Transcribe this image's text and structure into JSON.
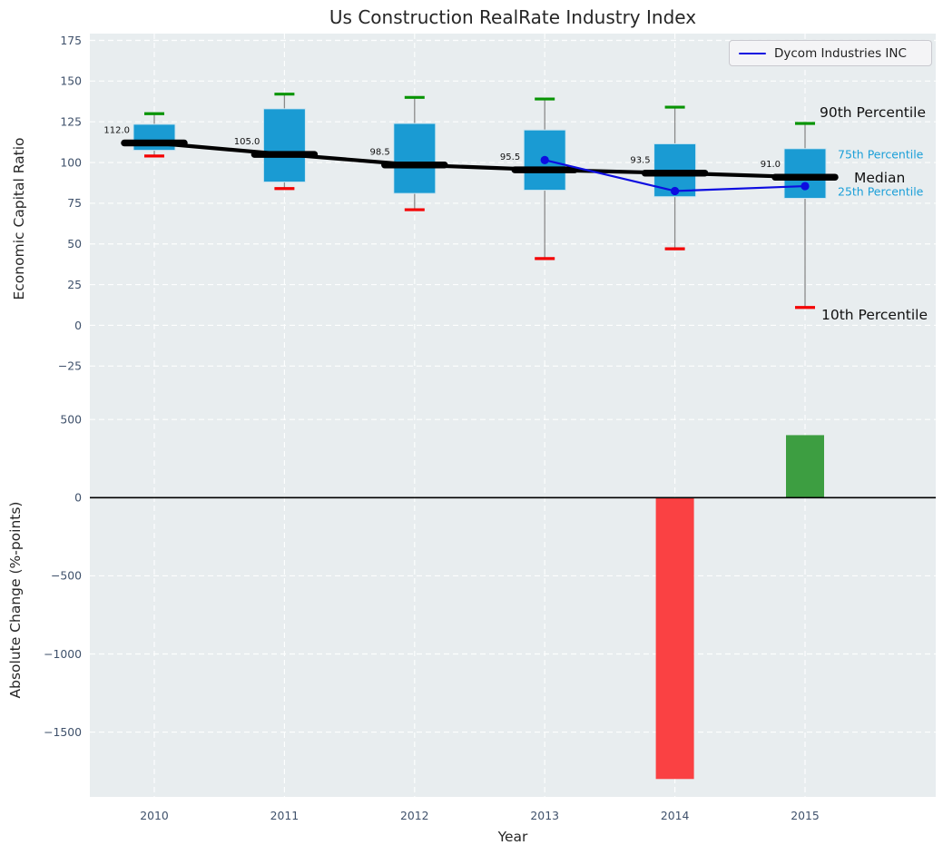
{
  "title": "Us Construction RealRate Industry Index",
  "legend": {
    "series_label": "Dycom Industries INC"
  },
  "axes": {
    "top_panel": {
      "ylabel": "Economic Capital Ratio",
      "yticks": [
        {
          "label": "175",
          "v": 175
        },
        {
          "label": "150",
          "v": 150
        },
        {
          "label": "125",
          "v": 125
        },
        {
          "label": "100",
          "v": 100
        },
        {
          "label": "75",
          "v": 75
        },
        {
          "label": "50",
          "v": 50
        },
        {
          "label": "25",
          "v": 25
        },
        {
          "label": "0",
          "v": 0
        },
        {
          "label": "−25",
          "v": -25
        }
      ]
    },
    "bottom_panel": {
      "ylabel": "Absolute Change (%-points)",
      "yticks": [
        {
          "label": "500",
          "v": 500
        },
        {
          "label": "0",
          "v": 0
        },
        {
          "label": "−500",
          "v": -500
        },
        {
          "label": "−1000",
          "v": -1000
        },
        {
          "label": "−1500",
          "v": -1500
        }
      ]
    },
    "xlabel": "Year"
  },
  "annotations": {
    "p90": "90th Percentile",
    "p75": "75th Percentile",
    "median": "Median",
    "p25": "25th Percentile",
    "p10": "10th Percentile"
  },
  "colors": {
    "panel_bg": "#e8edef",
    "grid": "#ffffff",
    "box_fill": "#1a9bd3",
    "box_edge": "#cfe6f0",
    "whisker": "#8a8a8a",
    "cap_top_green": "#089404",
    "cap_bottom_red": "#f40000",
    "median_black": "#000000",
    "dycom_blue": "#0d0de0",
    "bar_negative": "#fa4143",
    "bar_positive": "#3d9e41",
    "tick_text": "#3f516b",
    "annotation_cyan": "#1b9fd8"
  },
  "chart_data": [
    {
      "type": "box",
      "title": "Us Construction RealRate Industry Index",
      "xlabel": "Year",
      "ylabel": "Economic Capital Ratio",
      "ylim": [
        -48,
        179
      ],
      "grid": true,
      "legend_position": "upper right",
      "categories": [
        "2010",
        "2011",
        "2012",
        "2013",
        "2014",
        "2015"
      ],
      "series": [
        {
          "name": "90th Percentile",
          "values": [
            130,
            142,
            140,
            139,
            134,
            124
          ]
        },
        {
          "name": "75th Percentile",
          "values": [
            123.5,
            133,
            124,
            120,
            111.5,
            108.5
          ]
        },
        {
          "name": "Median",
          "values": [
            112.0,
            105.0,
            98.5,
            95.5,
            93.5,
            91.0
          ]
        },
        {
          "name": "25th Percentile",
          "values": [
            107.5,
            88,
            81,
            83,
            79,
            78
          ]
        },
        {
          "name": "10th Percentile",
          "values": [
            104,
            84,
            71,
            41,
            47,
            11
          ]
        },
        {
          "name": "Dycom Industries INC",
          "values": [
            null,
            null,
            null,
            101.5,
            82.5,
            85.5
          ]
        }
      ],
      "median_labels": [
        "112.0",
        "105.0",
        "98.5",
        "95.5",
        "93.5",
        "91.0"
      ]
    },
    {
      "type": "bar",
      "xlabel": "Year",
      "ylabel": "Absolute Change (%-points)",
      "ylim": [
        -1915,
        600
      ],
      "grid": true,
      "categories": [
        "2010",
        "2011",
        "2012",
        "2013",
        "2014",
        "2015"
      ],
      "values": [
        null,
        null,
        null,
        null,
        -1800,
        400
      ]
    }
  ]
}
